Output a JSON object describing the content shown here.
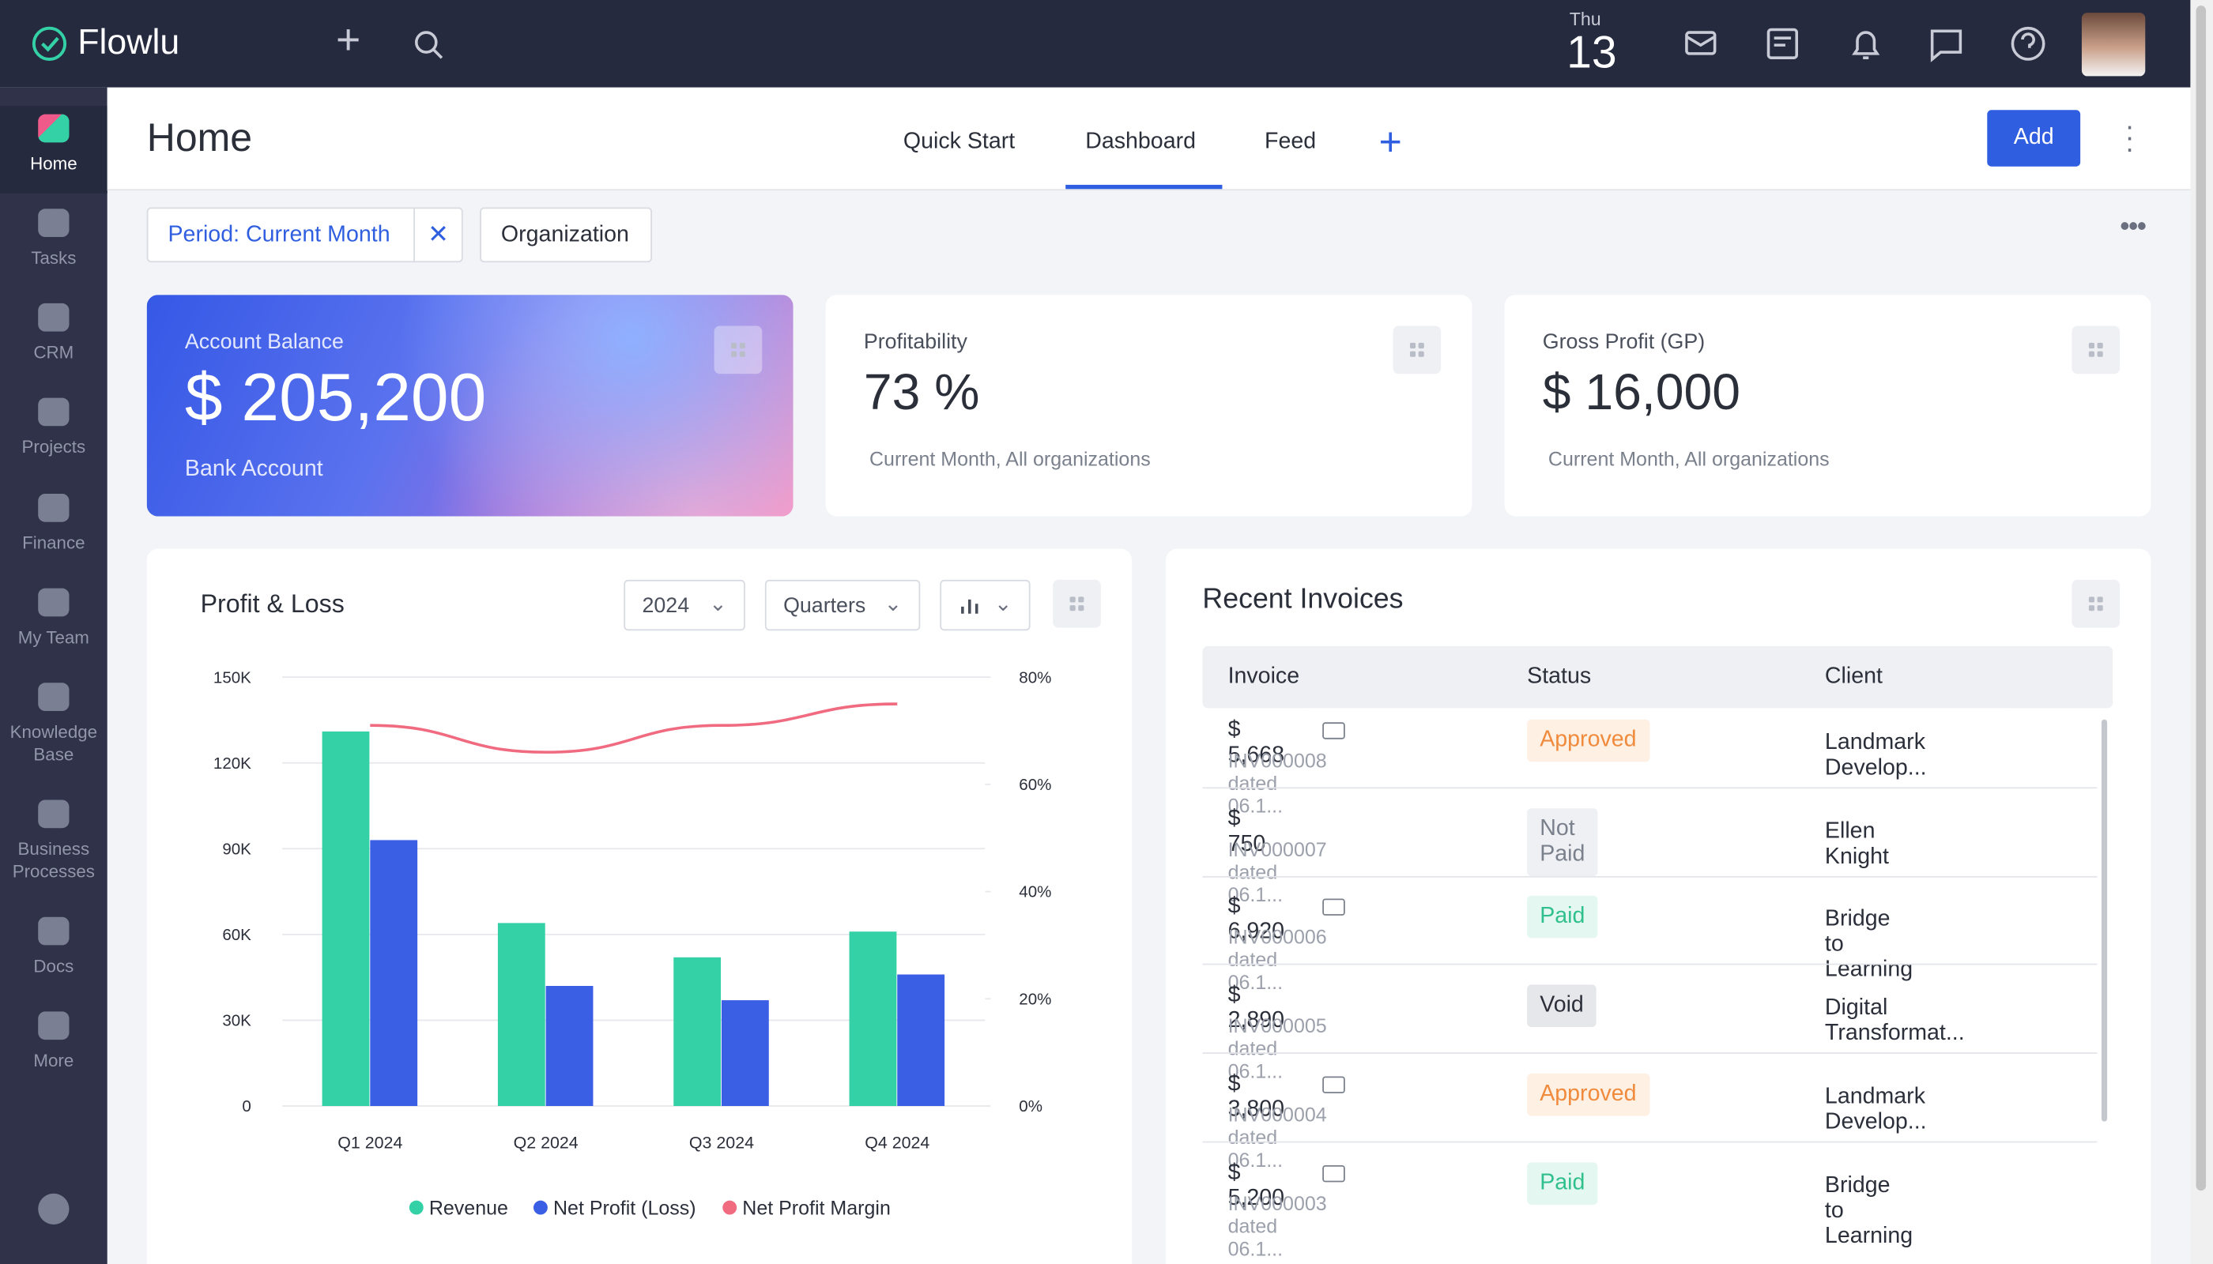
{
  "app": {
    "logo": "Flowlu",
    "day_name": "Thu",
    "day_number": "13"
  },
  "sidebar": {
    "items": [
      "Home",
      "Tasks",
      "CRM",
      "Projects",
      "Finance",
      "My Team",
      "Knowledge Base",
      "Business Processes",
      "Docs",
      "More"
    ]
  },
  "header": {
    "title": "Home",
    "tabs": [
      "Quick Start",
      "Dashboard",
      "Feed"
    ],
    "add_button": "Add"
  },
  "filters": {
    "period": "Period: Current Month",
    "organization": "Organization"
  },
  "cards": [
    {
      "label": "Account Balance",
      "value": "$ 205,200",
      "subtitle": "Bank Account"
    },
    {
      "label": "Profitability",
      "value": "73 %",
      "subtitle": "Current Month, All organizations"
    },
    {
      "label": "Gross Profit (GP)",
      "value": "$ 16,000",
      "subtitle": "Current Month, All organizations"
    }
  ],
  "chart_controls": {
    "year": "2024",
    "period": "Quarters"
  },
  "chart_data": {
    "type": "bar",
    "title": "Profit & Loss",
    "categories": [
      "Q1 2024",
      "Q2 2024",
      "Q3 2024",
      "Q4 2024"
    ],
    "series": [
      {
        "name": "Revenue",
        "color": "#34d1a6",
        "values": [
          131000,
          64000,
          52000,
          61000
        ]
      },
      {
        "name": "Net Profit (Loss)",
        "color": "#3a5fe5",
        "values": [
          93000,
          42000,
          37000,
          46000
        ]
      },
      {
        "name": "Net Profit Margin",
        "color": "#f06a80",
        "type": "line",
        "axis": "y2",
        "values": [
          71,
          66,
          71,
          75
        ]
      }
    ],
    "ylim": [
      0,
      150000
    ],
    "yticks": [
      0,
      {
        "value": 30000,
        "label": "30K"
      },
      {
        "value": 60000,
        "label": "60K"
      },
      {
        "value": 90000,
        "label": "90K"
      },
      {
        "value": 120000,
        "label": "120K"
      },
      {
        "value": 150000,
        "label": "150K"
      }
    ],
    "y2lim": [
      0,
      80
    ],
    "y2ticks": [
      {
        "value": 0,
        "label": "0%"
      },
      {
        "value": 20,
        "label": "20%"
      },
      {
        "value": 40,
        "label": "40%"
      },
      {
        "value": 60,
        "label": "60%"
      },
      {
        "value": 80,
        "label": "80%"
      }
    ],
    "grid": true
  },
  "invoices": {
    "title": "Recent Invoices",
    "columns": [
      "Invoice",
      "Status",
      "Client"
    ],
    "rows": [
      {
        "amount": "$ 5,668",
        "number": "INV000008 dated 06.1...",
        "status": "Approved",
        "client": "Landmark Develop..."
      },
      {
        "amount": "$ 750",
        "number": "INV000007 dated 06.1...",
        "status": "Not Paid",
        "client": "Ellen Knight"
      },
      {
        "amount": "$ 6,920",
        "number": "INV000006 dated 06.1...",
        "status": "Paid",
        "client": "Bridge to Learning"
      },
      {
        "amount": "$ 2,890",
        "number": "INV000005 dated 06.1...",
        "status": "Void",
        "client": "Digital Transformat..."
      },
      {
        "amount": "$ 3,800",
        "number": "INV000004 dated 06.1...",
        "status": "Approved",
        "client": "Landmark Develop..."
      },
      {
        "amount": "$ 5,200",
        "number": "INV000003 dated 06.1...",
        "status": "Paid",
        "client": "Bridge to Learning"
      }
    ]
  }
}
